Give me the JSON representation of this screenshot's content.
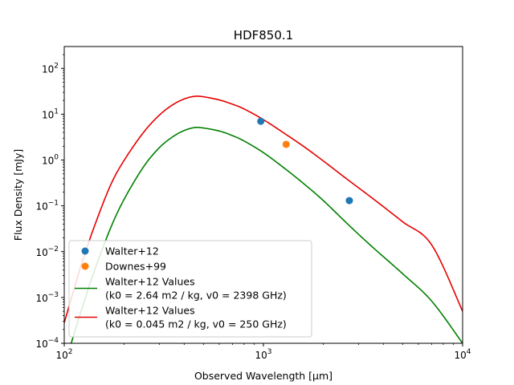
{
  "chart_data": {
    "type": "scatter",
    "title": "HDF850.1",
    "xlabel": "Observed Wavelength [μm]",
    "ylabel": "Flux Density [mJy]",
    "xscale": "log",
    "yscale": "log",
    "xlim": [
      100,
      10000
    ],
    "ylim": [
      0.0001,
      300
    ],
    "x_ticks": [
      {
        "value": 100,
        "base": "10",
        "exp": "2"
      },
      {
        "value": 1000,
        "base": "10",
        "exp": "3"
      },
      {
        "value": 10000,
        "base": "10",
        "exp": "4"
      }
    ],
    "y_ticks": [
      {
        "value": 0.0001,
        "base": "10",
        "exp": "−4"
      },
      {
        "value": 0.001,
        "base": "10",
        "exp": "−3"
      },
      {
        "value": 0.01,
        "base": "10",
        "exp": "−2"
      },
      {
        "value": 0.1,
        "base": "10",
        "exp": "−1"
      },
      {
        "value": 1,
        "base": "10",
        "exp": "0"
      },
      {
        "value": 10,
        "base": "10",
        "exp": "1"
      },
      {
        "value": 100,
        "base": "10",
        "exp": "2"
      }
    ],
    "legend_position": "lower-left",
    "series": [
      {
        "name": "Walter+12",
        "kind": "points",
        "color": "#1f77b4",
        "points": [
          [
            970,
            7.0
          ],
          [
            2700,
            0.13
          ]
        ]
      },
      {
        "name": "Downes+99",
        "kind": "points",
        "color": "#ff7f0e",
        "points": [
          [
            1300,
            2.2
          ]
        ]
      },
      {
        "name": "Walter+12 Values\n(k0 = 2.64 m2 / kg, v0 = 2398 GHz)",
        "kind": "line",
        "color": "#008000",
        "points": [
          [
            100,
            3.2e-05
          ],
          [
            120,
            0.00042
          ],
          [
            140,
            0.0033
          ],
          [
            170,
            0.031
          ],
          [
            200,
            0.14
          ],
          [
            250,
            0.71
          ],
          [
            300,
            1.85
          ],
          [
            350,
            3.2
          ],
          [
            400,
            4.4
          ],
          [
            450,
            5.1
          ],
          [
            500,
            5.0
          ],
          [
            600,
            4.3
          ],
          [
            700,
            3.4
          ],
          [
            800,
            2.6
          ],
          [
            1000,
            1.45
          ],
          [
            1300,
            0.62
          ],
          [
            1600,
            0.3
          ],
          [
            2000,
            0.13
          ],
          [
            2700,
            0.037
          ],
          [
            3500,
            0.013
          ],
          [
            5000,
            0.0033
          ],
          [
            7000,
            0.00083
          ],
          [
            10000,
            0.0001
          ]
        ]
      },
      {
        "name": "Walter+12 Values\n(k0 = 0.045 m2 / kg, v0 = 250 GHz)",
        "kind": "line",
        "color": "#e60000",
        "points": [
          [
            100,
            0.00028
          ],
          [
            120,
            0.0042
          ],
          [
            140,
            0.031
          ],
          [
            170,
            0.27
          ],
          [
            200,
            0.99
          ],
          [
            250,
            4.0
          ],
          [
            300,
            9.5
          ],
          [
            350,
            16.0
          ],
          [
            400,
            21.5
          ],
          [
            450,
            24.5
          ],
          [
            500,
            24.0
          ],
          [
            600,
            20.5
          ],
          [
            700,
            16.5
          ],
          [
            800,
            13.0
          ],
          [
            1000,
            7.6
          ],
          [
            1300,
            3.6
          ],
          [
            1600,
            1.95
          ],
          [
            2000,
            0.95
          ],
          [
            2700,
            0.35
          ],
          [
            3500,
            0.15
          ],
          [
            5000,
            0.045
          ],
          [
            7000,
            0.014
          ],
          [
            10000,
            0.0005
          ]
        ]
      }
    ]
  }
}
